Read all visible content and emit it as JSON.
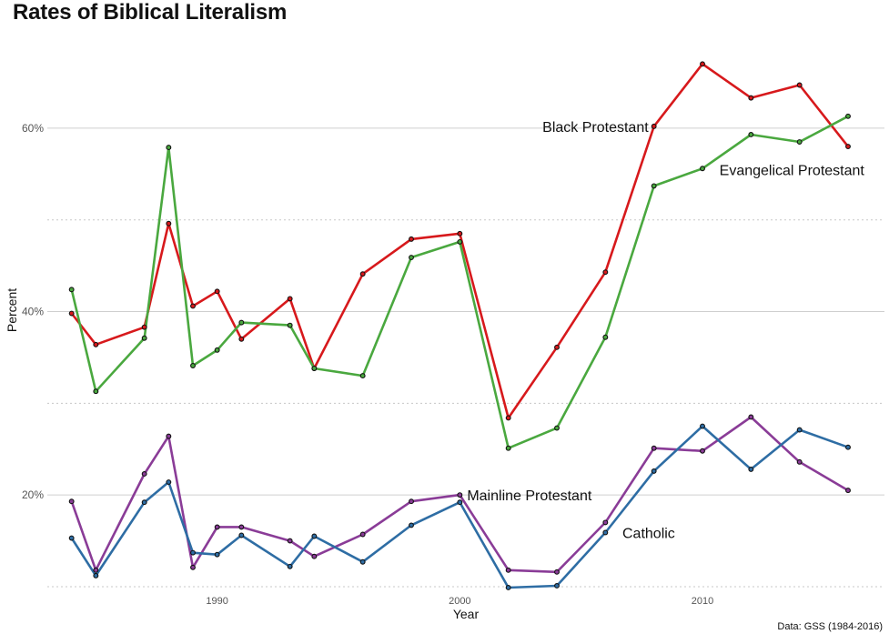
{
  "chart_data": {
    "type": "line",
    "title": "Rates of Biblical Literalism",
    "xlabel": "Year",
    "ylabel": "Percent",
    "caption": "Data: GSS (1984-2016)",
    "xlim": [
      1983,
      2017.5
    ],
    "ylim": [
      9.5,
      71
    ],
    "x_ticks": [
      1990,
      2000,
      2010
    ],
    "x_tick_labels": [
      "1990",
      "2000",
      "2010"
    ],
    "y_major_ticks": [
      20,
      40,
      60
    ],
    "y_tick_labels": [
      "20%",
      "40%",
      "60%"
    ],
    "y_minor_ticks": [
      10,
      30,
      50
    ],
    "grid": true,
    "legend": "none",
    "x": [
      1984,
      1985,
      1987,
      1988,
      1989,
      1990,
      1991,
      1993,
      1994,
      1996,
      1998,
      2000,
      2002,
      2004,
      2006,
      2008,
      2010,
      2012,
      2014,
      2016
    ],
    "series": [
      {
        "name": "Black Protestant",
        "color": "#d7191c",
        "values": [
          39.8,
          36.4,
          38.3,
          49.6,
          40.6,
          42.2,
          37.0,
          41.4,
          33.8,
          44.1,
          47.9,
          48.5,
          28.4,
          36.1,
          44.3,
          60.2,
          67.0,
          63.3,
          64.7,
          58.0
        ],
        "label_pos": {
          "x": 2008,
          "y": 60.2,
          "anchor": "end",
          "dx": -6,
          "dy": 6
        }
      },
      {
        "name": "Evangelical Protestant",
        "color": "#4aa83f",
        "values": [
          42.4,
          31.3,
          37.1,
          57.9,
          34.1,
          35.8,
          38.8,
          38.5,
          33.8,
          33.0,
          45.9,
          47.6,
          25.1,
          27.3,
          37.2,
          53.7,
          55.6,
          59.3,
          58.5,
          61.3
        ],
        "label_pos": {
          "x": 2010.7,
          "y": 55.6,
          "anchor": "start",
          "dx": 0,
          "dy": 7
        }
      },
      {
        "name": "Mainline Protestant",
        "color": "#8a3c97",
        "values": [
          19.3,
          11.8,
          22.3,
          26.4,
          12.1,
          16.5,
          16.5,
          15.0,
          13.3,
          15.7,
          19.3,
          20.0,
          11.8,
          11.6,
          17.0,
          25.1,
          24.8,
          28.5,
          23.6,
          20.5
        ],
        "label_pos": {
          "x": 2000,
          "y": 20.0,
          "anchor": "start",
          "dx": 8,
          "dy": 6
        }
      },
      {
        "name": "Catholic",
        "color": "#2e6da4",
        "values": [
          15.3,
          11.2,
          19.2,
          21.4,
          13.7,
          13.5,
          15.6,
          12.2,
          15.5,
          12.7,
          16.7,
          19.2,
          9.9,
          10.1,
          15.9,
          22.6,
          27.5,
          22.8,
          27.1,
          25.2
        ],
        "label_pos": {
          "x": 2006.7,
          "y": 15.9,
          "anchor": "start",
          "dx": 0,
          "dy": 6
        }
      }
    ]
  }
}
